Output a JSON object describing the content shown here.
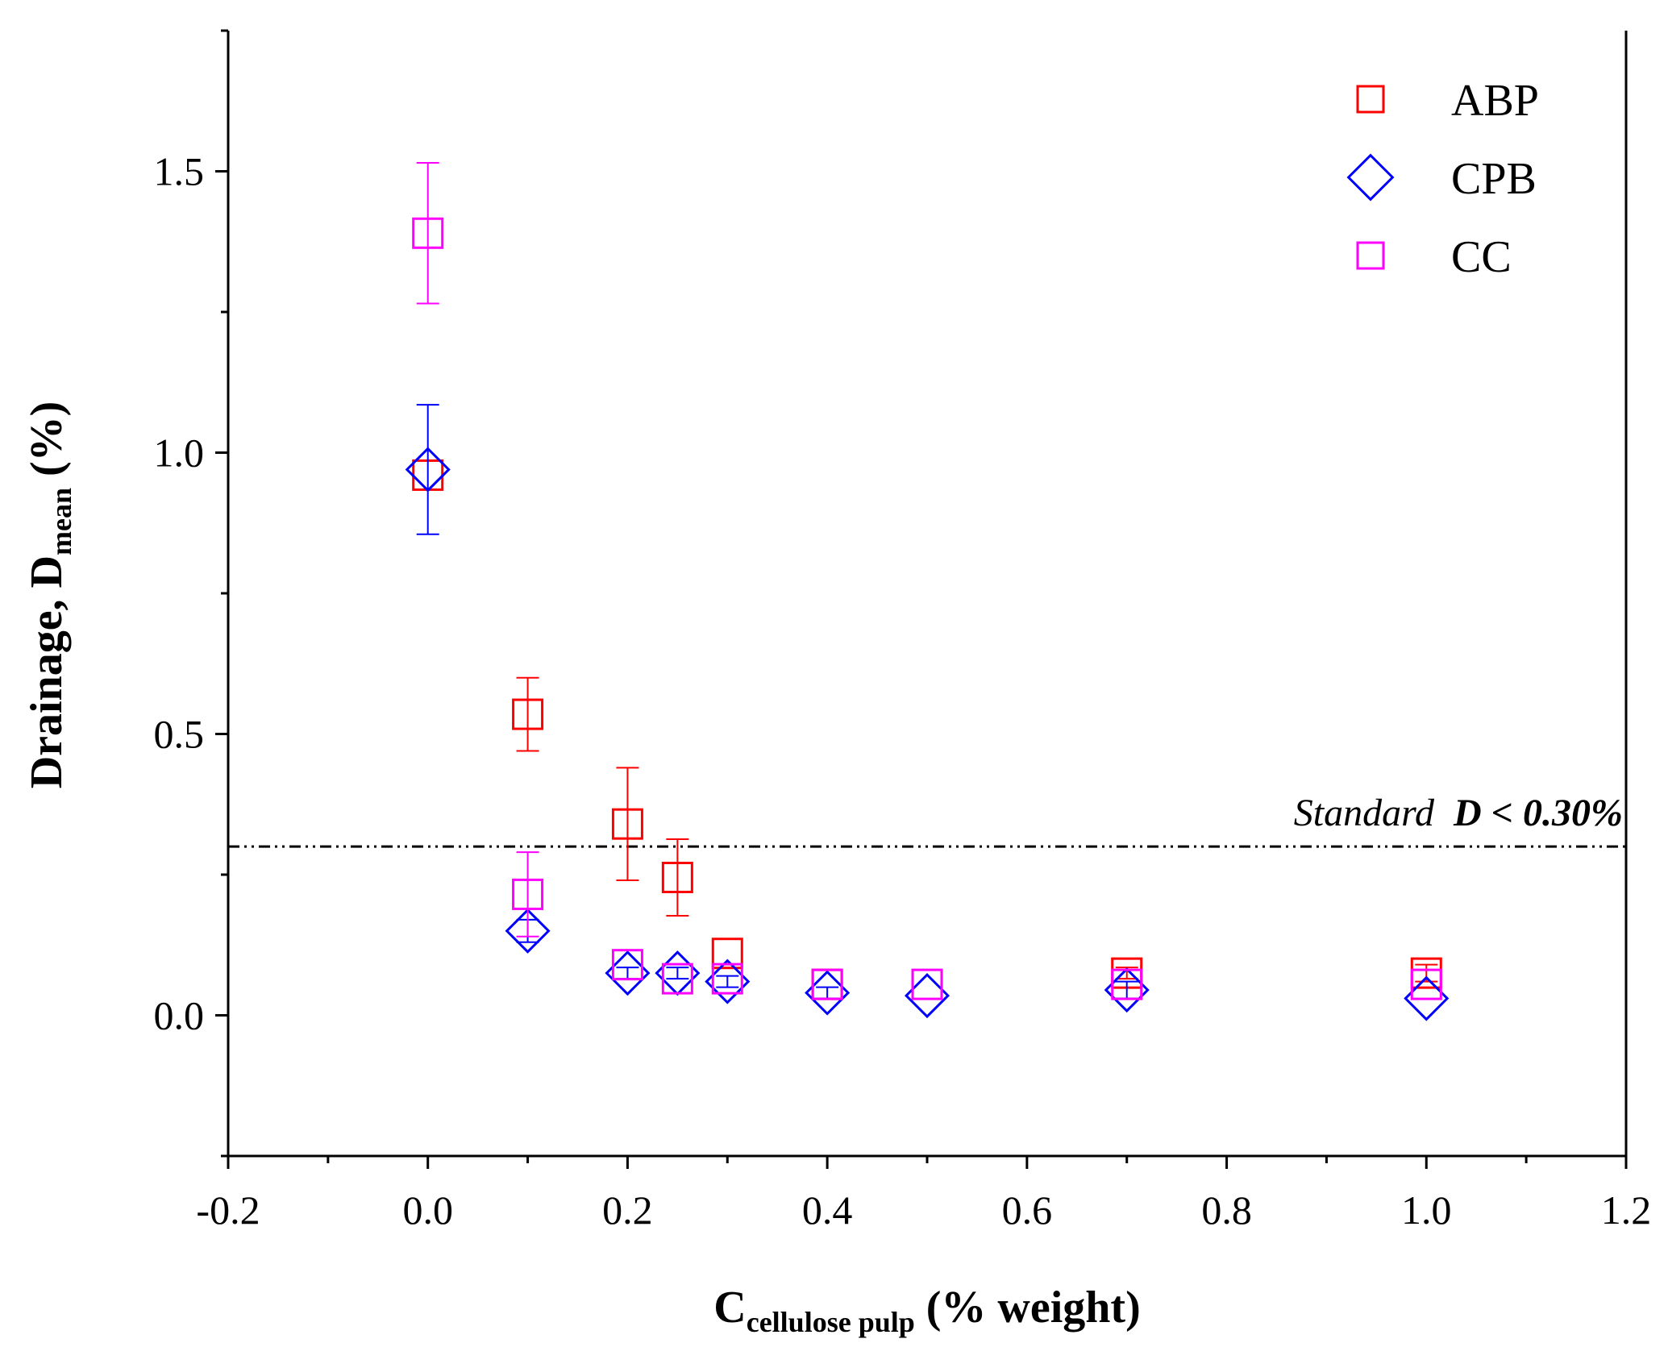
{
  "chart_data": {
    "type": "scatter",
    "title": "",
    "xlabel": {
      "main": "C",
      "subscript": "cellulose pulp",
      "suffix": " (% weight)"
    },
    "ylabel": {
      "prefix": "Drainage, D",
      "subscript": "mean",
      "suffix": " (%)"
    },
    "xlim": [
      -0.2,
      1.2
    ],
    "ylim": [
      -0.25,
      1.75
    ],
    "x_ticks": [
      -0.2,
      0.0,
      0.2,
      0.4,
      0.6,
      0.8,
      1.0,
      1.2
    ],
    "x_tick_labels": [
      "-0.2",
      "0.0",
      "0.2",
      "0.4",
      "0.6",
      "0.8",
      "1.0",
      "1.2"
    ],
    "y_ticks": [
      0.0,
      0.5,
      1.0,
      1.5
    ],
    "y_tick_labels": [
      "0.0",
      "0.5",
      "1.0",
      "1.5"
    ],
    "grid": false,
    "legend_position": "top-right",
    "reference_line": {
      "y": 0.3,
      "style": "dash-dot-dot",
      "label_italic": "Standard",
      "label_bold": "D < 0.30%"
    },
    "series": [
      {
        "name": "ABP",
        "marker": "square",
        "color": "#ff0000",
        "points": [
          {
            "x": 0.0,
            "y": 0.96,
            "err": 0.0
          },
          {
            "x": 0.1,
            "y": 0.535,
            "err": 0.065
          },
          {
            "x": 0.2,
            "y": 0.34,
            "err": 0.1
          },
          {
            "x": 0.25,
            "y": 0.245,
            "err": 0.068
          },
          {
            "x": 0.3,
            "y": 0.11,
            "err": 0.0
          },
          {
            "x": 0.4,
            "y": 0.055,
            "err": 0.0
          },
          {
            "x": 0.7,
            "y": 0.075,
            "err": 0.01
          },
          {
            "x": 1.0,
            "y": 0.075,
            "err": 0.015
          }
        ]
      },
      {
        "name": "CPB",
        "marker": "diamond",
        "color": "#0000ff",
        "points": [
          {
            "x": 0.0,
            "y": 0.97,
            "err": 0.115
          },
          {
            "x": 0.1,
            "y": 0.15,
            "err": 0.02
          },
          {
            "x": 0.2,
            "y": 0.075,
            "err": 0.01
          },
          {
            "x": 0.25,
            "y": 0.075,
            "err": 0.01
          },
          {
            "x": 0.3,
            "y": 0.06,
            "err": 0.01
          },
          {
            "x": 0.4,
            "y": 0.04,
            "err": 0.01
          },
          {
            "x": 0.5,
            "y": 0.035,
            "err": 0.0
          },
          {
            "x": 0.7,
            "y": 0.045,
            "err": 0.015
          },
          {
            "x": 1.0,
            "y": 0.03,
            "err": 0.0
          }
        ]
      },
      {
        "name": "CC",
        "marker": "square",
        "color": "#ff00ff",
        "points": [
          {
            "x": 0.0,
            "y": 1.39,
            "err": 0.125
          },
          {
            "x": 0.1,
            "y": 0.215,
            "err": 0.075
          },
          {
            "x": 0.2,
            "y": 0.09,
            "err": 0.0
          },
          {
            "x": 0.25,
            "y": 0.065,
            "err": 0.0
          },
          {
            "x": 0.3,
            "y": 0.065,
            "err": 0.0
          },
          {
            "x": 0.4,
            "y": 0.055,
            "err": 0.0
          },
          {
            "x": 0.5,
            "y": 0.055,
            "err": 0.0
          },
          {
            "x": 0.7,
            "y": 0.055,
            "err": 0.0
          },
          {
            "x": 1.0,
            "y": 0.055,
            "err": 0.0
          }
        ]
      }
    ]
  }
}
